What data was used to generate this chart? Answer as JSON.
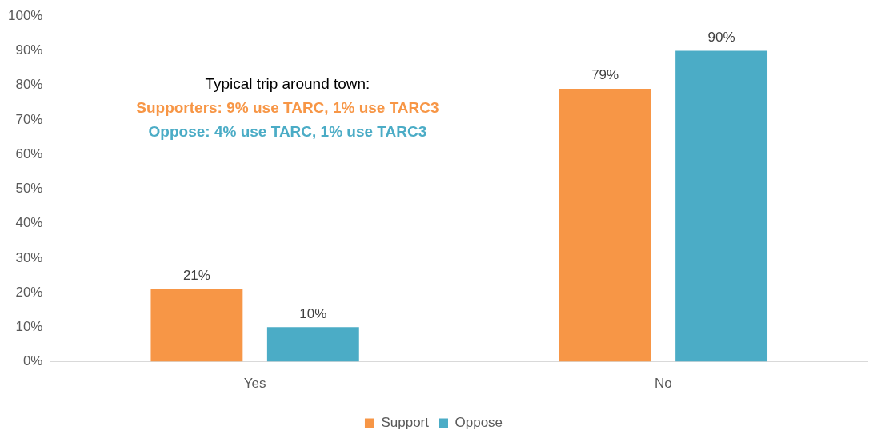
{
  "chart_data": {
    "type": "bar",
    "categories": [
      "Yes",
      "No"
    ],
    "series": [
      {
        "name": "Support",
        "color": "#f79646",
        "values": [
          21,
          79
        ]
      },
      {
        "name": "Oppose",
        "color": "#4bacc6",
        "values": [
          10,
          90
        ]
      }
    ],
    "ylim": [
      0,
      100
    ],
    "yticks": [
      {
        "value": 0,
        "label": "0%"
      },
      {
        "value": 10,
        "label": "10%"
      },
      {
        "value": 20,
        "label": "20%"
      },
      {
        "value": 30,
        "label": "30%"
      },
      {
        "value": 40,
        "label": "40%"
      },
      {
        "value": 50,
        "label": "50%"
      },
      {
        "value": 60,
        "label": "60%"
      },
      {
        "value": 70,
        "label": "70%"
      },
      {
        "value": 80,
        "label": "80%"
      },
      {
        "value": 90,
        "label": "90%"
      },
      {
        "value": 100,
        "label": "100%"
      }
    ],
    "value_labels": [
      [
        "21%",
        "79%"
      ],
      [
        "10%",
        "90%"
      ]
    ],
    "annotations": [
      "Typical trip around town:",
      "Supporters: 9% use TARC, 1% use TARC3",
      "Oppose: 4% use TARC, 1% use TARC3"
    ],
    "grid": false,
    "legend": "bottom"
  }
}
